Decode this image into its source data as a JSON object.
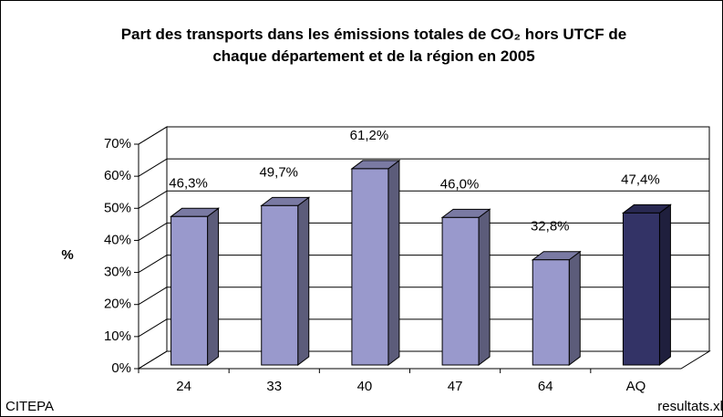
{
  "chart_data": {
    "type": "bar3d",
    "title": "Part des transports dans les émissions totales de CO₂ hors UTCF de chaque département et de la région en 2005",
    "y_label": "%",
    "categories": [
      "24",
      "33",
      "40",
      "47",
      "64",
      "AQ"
    ],
    "values": [
      46.3,
      49.7,
      61.2,
      46.0,
      32.8,
      47.4
    ],
    "value_labels": [
      "46,3%",
      "49,7%",
      "61,2%",
      "46,0%",
      "32,8%",
      "47,4%"
    ],
    "colors": [
      "#9999cc",
      "#9999cc",
      "#9999cc",
      "#9999cc",
      "#9999cc",
      "#333366"
    ],
    "ylim": [
      0,
      70
    ],
    "yticks": [
      {
        "value": 0,
        "label": "0%"
      },
      {
        "value": 10,
        "label": "10%"
      },
      {
        "value": 20,
        "label": "20%"
      },
      {
        "value": 30,
        "label": "30%"
      },
      {
        "value": 40,
        "label": "40%"
      },
      {
        "value": 50,
        "label": "50%"
      },
      {
        "value": 60,
        "label": "60%"
      },
      {
        "value": 70,
        "label": "70%"
      }
    ],
    "grid": true,
    "source_left": "CITEPA",
    "source_right": "resultats.xl"
  }
}
